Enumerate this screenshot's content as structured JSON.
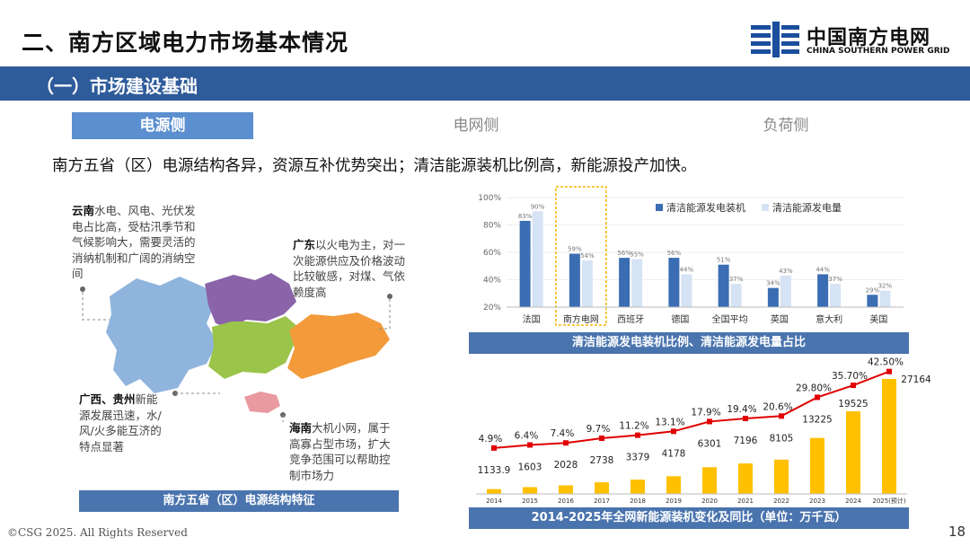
{
  "header": {
    "title": "二、南方区域电力市场基本情况",
    "logo_cn": "中国南方电网",
    "logo_en": "CHINA SOUTHERN POWER GRID",
    "section_title": "（一）市场建设基础"
  },
  "tabs": [
    {
      "label": "电源侧"
    },
    {
      "label": "电网侧"
    },
    {
      "label": "负荷侧"
    }
  ],
  "headline": "南方五省（区）电源结构各异，资源互补优势突出；清洁能源装机比例高，新能源投产加快。",
  "map_notes": {
    "yunnan": {
      "region": "云南",
      "text": "水电、风电、光伏发电占比高，受枯汛季节和气候影响大，需要灵活的消纳机制和广阔的消纳空间"
    },
    "guangdong": {
      "region": "广东",
      "text": "以火电为主，对一次能源供应及价格波动比较敏感，对煤、气依赖度高"
    },
    "guangxi_guizhou": {
      "region": "广西、贵州",
      "text": "新能源发展迅速，水/风/火多能互济的特点显著"
    },
    "hainan": {
      "region": "海南",
      "text": "大机小网，属于高寡占型市场，扩大竞争范围可以帮助控制市场力"
    },
    "caption": "南方五省（区）电源结构特征"
  },
  "colors": {
    "brand": "#2e5b9a",
    "tab_active": "#5b8fcf",
    "bar_capacity": "#3b6db3",
    "bar_generation": "#d6e3f5",
    "bar_yellow": "#ffc000",
    "line_red": "#e00000",
    "yunnan": "#8fb4dd",
    "guizhou": "#8a63a8",
    "guangxi": "#9ac44a",
    "guangdong": "#f39a3a",
    "hainan": "#e89aa0"
  },
  "chart_data": [
    {
      "type": "bar",
      "title": "清洁能源发电装机比例、清洁能源发电量占比",
      "categories": [
        "法国",
        "南方电网",
        "西班牙",
        "德国",
        "全国平均",
        "英国",
        "意大利",
        "美国"
      ],
      "series": [
        {
          "name": "清洁能源发电装机",
          "values": [
            83,
            59,
            56,
            56,
            51,
            34,
            44,
            29
          ],
          "labels": [
            "83%",
            "59%",
            "56%",
            "56%",
            "51%",
            "34%",
            "44%",
            "29%"
          ]
        },
        {
          "name": "清洁能源发电量",
          "values": [
            90,
            54,
            55,
            44,
            37,
            43,
            37,
            32
          ],
          "labels": [
            "90%",
            "54%",
            "55%",
            "44%",
            "37%",
            "43%",
            "37%",
            "32%"
          ]
        }
      ],
      "yticks": [
        "100%",
        "80%",
        "60%",
        "40%",
        "20%"
      ],
      "ylim": [
        20,
        100
      ],
      "legend": "top-right",
      "highlight": "南方电网"
    },
    {
      "type": "bar",
      "title": "2014-2025年全网新能源装机变化及同比（单位：万千瓦）",
      "categories": [
        "2014",
        "2015",
        "2016",
        "2017",
        "2018",
        "2019",
        "2020",
        "2021",
        "2022",
        "2023",
        "2024",
        "2025(预计)"
      ],
      "values": [
        1133.9,
        1603,
        2028,
        2738,
        3379,
        4178,
        6301,
        7196,
        8105,
        13225,
        19525,
        27164
      ],
      "value_labels": [
        "1133.9",
        "1603",
        "2028",
        "2738",
        "3379",
        "4178",
        "6301",
        "7196",
        "8105",
        "13225",
        "19525",
        "27164"
      ],
      "ratio": [
        4.9,
        6.4,
        7.4,
        9.7,
        11.2,
        13.1,
        17.9,
        19.4,
        20.6,
        29.8,
        35.7,
        42.5
      ],
      "ratio_labels": [
        "4.9%",
        "6.4%",
        "7.4%",
        "9.7%",
        "11.2%",
        "13.1%",
        "17.9%",
        "19.4%",
        "20.6%",
        "29.80%",
        "35.70%",
        "42.50%"
      ],
      "ylim": [
        0,
        28000
      ]
    }
  ],
  "footer": {
    "copyright": "©CSG 2025. All Rights Reserved",
    "page": "18"
  }
}
